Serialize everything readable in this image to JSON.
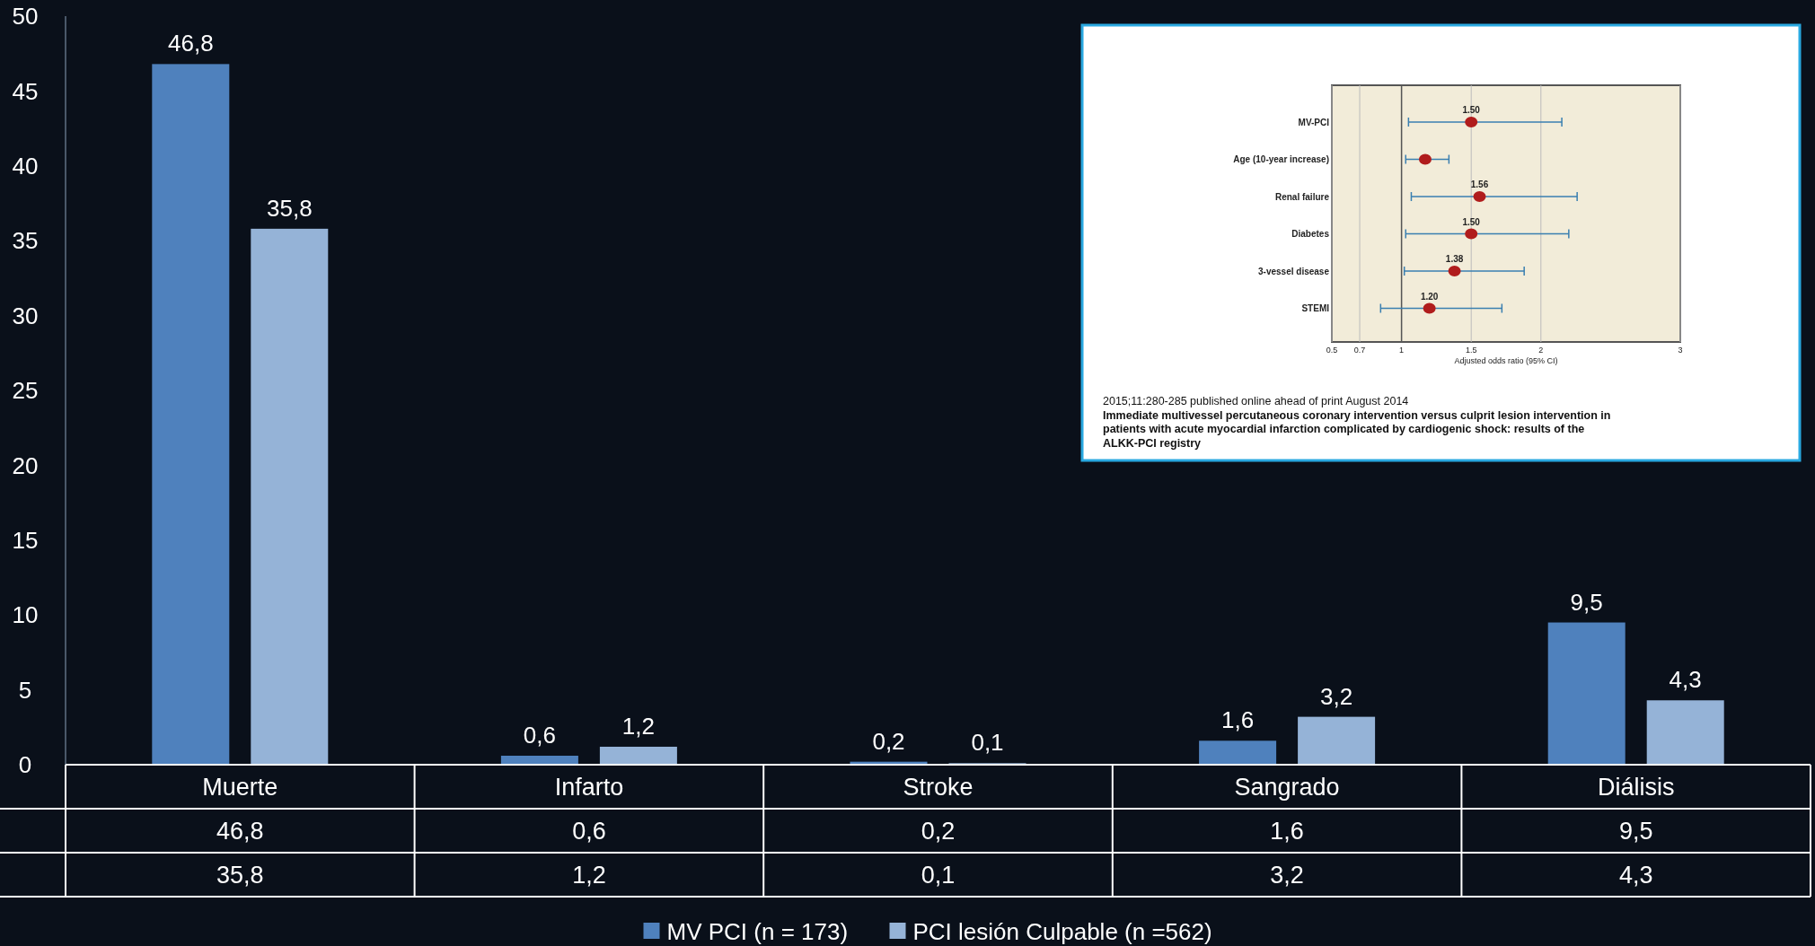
{
  "chart_data": [
    {
      "type": "bar",
      "categories": [
        "Muerte",
        "Infarto",
        "Stroke",
        "Sangrado",
        "Diálisis"
      ],
      "series": [
        {
          "name": "MV PCI (n = 173)",
          "color": "#4f81bd",
          "values": [
            46.8,
            0.6,
            0.2,
            1.6,
            9.5
          ],
          "value_labels": [
            "46,8",
            "0,6",
            "0,2",
            "1,6",
            "9,5"
          ]
        },
        {
          "name": "PCI lesión Culpable (n =562)",
          "color": "#95b3d7",
          "values": [
            35.8,
            1.2,
            0.1,
            3.2,
            4.3
          ],
          "value_labels": [
            "35,8",
            "1,2",
            "0,1",
            "3,2",
            "4,3"
          ]
        }
      ],
      "ylim": [
        0,
        50
      ],
      "yticks": [
        0,
        5,
        10,
        15,
        20,
        25,
        30,
        35,
        40,
        45,
        50
      ],
      "legend": "bottom"
    },
    {
      "type": "scatter",
      "orientation": "horizontal",
      "categories": [
        "MV-PCI",
        "Age (10-year increase)",
        "Renal failure",
        "Diabetes",
        "3-vessel disease",
        "STEMI"
      ],
      "values": [
        1.5,
        1.17,
        1.56,
        1.5,
        1.38,
        1.2
      ],
      "errors": [
        [
          1.05,
          2.15
        ],
        [
          1.03,
          1.34
        ],
        [
          1.07,
          2.26
        ],
        [
          1.03,
          2.2
        ],
        [
          1.02,
          1.88
        ],
        [
          0.85,
          1.72
        ]
      ],
      "value_labels": [
        "1.50",
        null,
        "1.56",
        "1.50",
        "1.38",
        "1.20"
      ],
      "color": "#b01c1c",
      "marker": "circle",
      "xlim": [
        0.5,
        3
      ],
      "xticks": [
        0.5,
        0.7,
        1,
        1.5,
        2,
        3
      ],
      "grid": "x",
      "ref_lines": [
        {
          "axis": "x",
          "value": 1,
          "color": "#555555"
        }
      ],
      "xlabel": "Adjusted odds ratio (95% CI)",
      "annotations": [
        "2015;11:280-285 published online ahead of print August 2014",
        "Immediate multivessel percutaneous coronary intervention versus culprit lesion intervention in patients with acute myocardial infarction complicated by cardiogenic shock: results of the ALKK-PCI registry"
      ]
    }
  ]
}
